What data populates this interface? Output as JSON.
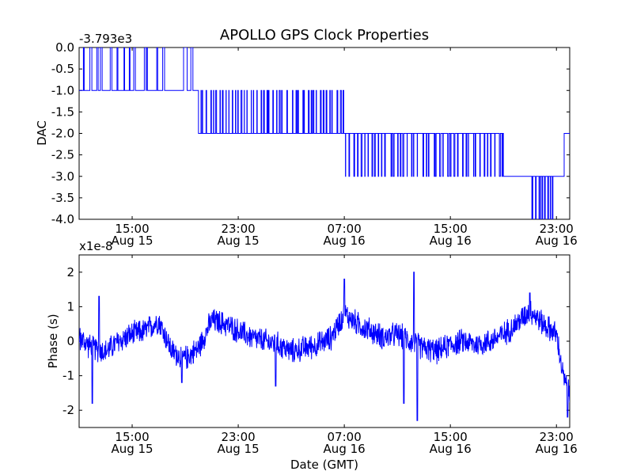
{
  "title": "APOLLO GPS Clock Properties",
  "colors": {
    "line": "#0000ff",
    "axes": "#000000",
    "background": "#ffffff"
  },
  "chart_data": [
    {
      "type": "line",
      "ylabel": "DAC",
      "offset_text": "-3.793e3",
      "ylim": [
        -4.0,
        0.0
      ],
      "yticks": [
        0.0,
        -0.5,
        -1.0,
        -1.5,
        -2.0,
        -2.5,
        -3.0,
        -3.5,
        -4.0
      ],
      "ytick_labels": [
        "0.0",
        "-0.5",
        "-1.0",
        "-1.5",
        "-2.0",
        "-2.5",
        "-3.0",
        "-3.5",
        "-4.0"
      ],
      "xlim": [
        "Aug 15 11:00",
        "Aug 17 00:00"
      ],
      "xticks": [
        "Aug 15 15:00",
        "Aug 15 23:00",
        "Aug 16 07:00",
        "Aug 16 15:00",
        "Aug 16 23:00"
      ],
      "xtick_labels": [
        [
          "15:00",
          "Aug 15"
        ],
        [
          "23:00",
          "Aug 15"
        ],
        [
          "07:00",
          "Aug 16"
        ],
        [
          "15:00",
          "Aug 16"
        ],
        [
          "23:00",
          "Aug 16"
        ]
      ],
      "grid": false,
      "levels": [
        {
          "start": "Aug 15 11:00",
          "end": "Aug 15 17:00",
          "value": -1.0,
          "toggles_to": 0.0,
          "toggles": 12
        },
        {
          "start": "Aug 15 17:00",
          "end": "Aug 15 20:00",
          "value": -1.0,
          "toggles_to": 0.0,
          "toggles": 3
        },
        {
          "start": "Aug 15 20:00",
          "end": "Aug 16 07:00",
          "value": -2.0,
          "toggles_to": -1.0,
          "toggles": 46
        },
        {
          "start": "Aug 16 07:00",
          "end": "Aug 16 19:00",
          "value": -2.0,
          "toggles_to": -3.0,
          "toggles": 44
        },
        {
          "start": "Aug 16 19:00",
          "end": "Aug 16 21:00",
          "value": -3.0,
          "toggles_to": -3.0,
          "toggles": 0
        },
        {
          "start": "Aug 16 21:00",
          "end": "Aug 16 22:45",
          "value": -3.0,
          "toggles_to": -4.0,
          "toggles": 10
        },
        {
          "start": "Aug 16 22:45",
          "end": "Aug 16 23:35",
          "value": -3.0,
          "toggles_to": -3.0,
          "toggles": 0
        },
        {
          "start": "Aug 16 23:35",
          "end": "Aug 17 00:00",
          "value": -2.0,
          "toggles_to": -2.0,
          "toggles": 0
        }
      ]
    },
    {
      "type": "line",
      "ylabel": "Phase (s)",
      "xlabel": "Date (GMT)",
      "offset_text": "x1e-8",
      "ylim": [
        -2.5,
        2.5
      ],
      "yticks": [
        2,
        1,
        0,
        -1,
        -2
      ],
      "ytick_labels": [
        "2",
        "1",
        "0",
        "-1",
        "-2"
      ],
      "xlim": [
        "Aug 15 11:00",
        "Aug 17 00:00"
      ],
      "xticks": [
        "Aug 15 15:00",
        "Aug 15 23:00",
        "Aug 16 07:00",
        "Aug 16 15:00",
        "Aug 16 23:00"
      ],
      "xtick_labels": [
        [
          "15:00",
          "Aug 15"
        ],
        [
          "23:00",
          "Aug 15"
        ],
        [
          "07:00",
          "Aug 16"
        ],
        [
          "15:00",
          "Aug 16"
        ],
        [
          "23:00",
          "Aug 16"
        ]
      ],
      "grid": false,
      "trend": {
        "x": [
          "Aug 15 11:00",
          "Aug 15 12:00",
          "Aug 15 13:00",
          "Aug 15 14:00",
          "Aug 15 15:00",
          "Aug 15 16:00",
          "Aug 15 17:00",
          "Aug 15 18:00",
          "Aug 15 19:00",
          "Aug 15 20:00",
          "Aug 15 21:00",
          "Aug 15 22:00",
          "Aug 15 23:00",
          "Aug 16 00:00",
          "Aug 16 01:00",
          "Aug 16 02:00",
          "Aug 16 03:00",
          "Aug 16 04:00",
          "Aug 16 05:00",
          "Aug 16 06:00",
          "Aug 16 07:00",
          "Aug 16 08:00",
          "Aug 16 09:00",
          "Aug 16 10:00",
          "Aug 16 11:00",
          "Aug 16 12:00",
          "Aug 16 13:00",
          "Aug 16 14:00",
          "Aug 16 15:00",
          "Aug 16 16:00",
          "Aug 16 17:00",
          "Aug 16 18:00",
          "Aug 16 19:00",
          "Aug 16 20:00",
          "Aug 16 21:00",
          "Aug 16 22:00",
          "Aug 16 23:00",
          "Aug 16 23:30",
          "Aug 17 00:00"
        ],
        "y": [
          0.1,
          -0.2,
          -0.3,
          0.0,
          0.2,
          0.3,
          0.6,
          -0.3,
          -0.5,
          -0.2,
          0.6,
          0.5,
          0.3,
          0.1,
          0.0,
          -0.1,
          -0.3,
          -0.2,
          -0.1,
          0.1,
          0.8,
          0.5,
          0.3,
          0.1,
          0.2,
          0.0,
          -0.2,
          -0.3,
          -0.1,
          0.0,
          -0.1,
          0.0,
          0.2,
          0.5,
          0.9,
          0.5,
          0.2,
          -1.0,
          -1.6
        ]
      },
      "noise_amplitude": 0.35,
      "spikes": [
        {
          "x": "Aug 15 12:00",
          "y": -1.8
        },
        {
          "x": "Aug 15 12:30",
          "y": 1.3
        },
        {
          "x": "Aug 15 18:45",
          "y": -1.2
        },
        {
          "x": "Aug 16 01:50",
          "y": -1.3
        },
        {
          "x": "Aug 16 07:00",
          "y": 1.8
        },
        {
          "x": "Aug 16 11:30",
          "y": -1.8
        },
        {
          "x": "Aug 16 12:15",
          "y": 2.0
        },
        {
          "x": "Aug 16 12:30",
          "y": -2.3
        },
        {
          "x": "Aug 16 21:00",
          "y": 1.4
        },
        {
          "x": "Aug 16 23:50",
          "y": -2.2
        }
      ]
    }
  ]
}
